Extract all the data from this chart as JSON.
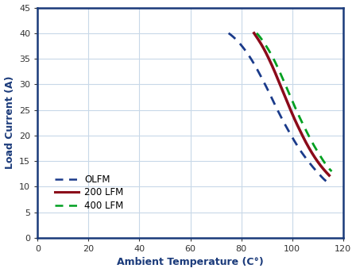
{
  "title": "",
  "xlabel": "Ambient Temperature (C°)",
  "ylabel": "Load Current (A)",
  "xlim": [
    0,
    120
  ],
  "ylim": [
    0,
    45
  ],
  "xticks": [
    0,
    20,
    40,
    60,
    80,
    100,
    120
  ],
  "yticks": [
    0,
    5,
    10,
    15,
    20,
    25,
    30,
    35,
    40,
    45
  ],
  "background_color": "#ffffff",
  "grid_color": "#c8d8e8",
  "series": [
    {
      "label": "OLFM",
      "color": "#1a3a8a",
      "linestyle": "dashed",
      "linewidth": 2.0,
      "x": [
        75,
        77,
        79,
        81,
        83,
        85,
        87,
        89,
        91,
        93,
        95,
        97,
        99,
        101,
        103,
        105,
        107,
        109,
        111,
        113,
        114.5
      ],
      "y": [
        40.0,
        39.2,
        38.2,
        37.0,
        35.6,
        34.0,
        32.2,
        30.3,
        28.3,
        26.2,
        24.2,
        22.3,
        20.5,
        18.8,
        17.2,
        15.8,
        14.5,
        13.3,
        12.2,
        11.2,
        10.8
      ]
    },
    {
      "label": "200 LFM",
      "color": "#8b0a1a",
      "linestyle": "solid",
      "linewidth": 2.5,
      "x": [
        85,
        87,
        89,
        91,
        93,
        95,
        97,
        99,
        101,
        103,
        105,
        107,
        109,
        111,
        113,
        114.5
      ],
      "y": [
        40.0,
        38.5,
        36.8,
        34.8,
        32.6,
        30.2,
        27.8,
        25.4,
        23.1,
        21.0,
        19.0,
        17.2,
        15.6,
        14.2,
        13.0,
        12.2
      ]
    },
    {
      "label": "400 LFM",
      "color": "#00a020",
      "linestyle": "dashed",
      "linewidth": 2.0,
      "x": [
        86,
        88,
        90,
        92,
        94,
        96,
        98,
        100,
        102,
        104,
        106,
        108,
        110,
        112,
        114,
        115.5
      ],
      "y": [
        40.0,
        38.8,
        37.3,
        35.6,
        33.6,
        31.4,
        29.1,
        26.8,
        24.5,
        22.4,
        20.4,
        18.5,
        16.8,
        15.2,
        13.8,
        13.0
      ]
    }
  ]
}
